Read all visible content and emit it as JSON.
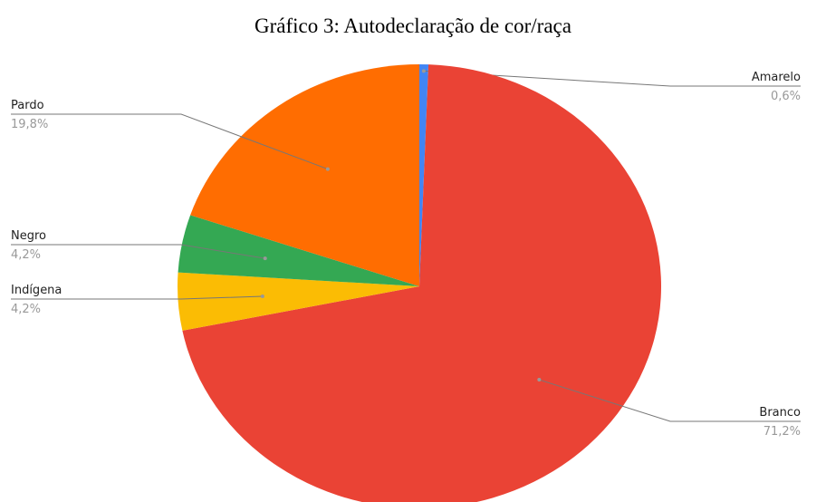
{
  "chart_data": {
    "type": "pie",
    "title": "Gráfico 3: Autodeclaração de cor/raça",
    "categories": [
      "Amarelo",
      "Branco",
      "Indígena",
      "Negro",
      "Pardo"
    ],
    "values": [
      0.6,
      71.2,
      4.2,
      4.2,
      19.8
    ],
    "value_labels": [
      "0,6%",
      "71,2%",
      "4,2%",
      "4,2%",
      "19,8%"
    ],
    "colors": [
      "#4285f4",
      "#ea4335",
      "#fbbc04",
      "#34a853",
      "#ff6d01"
    ]
  }
}
